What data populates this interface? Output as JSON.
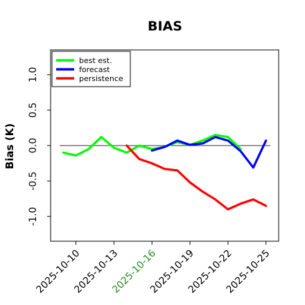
{
  "chart_data": {
    "type": "line",
    "title": "BIAS",
    "xlabel": "",
    "ylabel": "Bias (K)",
    "x_dates": [
      "2025-10-09",
      "2025-10-10",
      "2025-10-11",
      "2025-10-12",
      "2025-10-13",
      "2025-10-14",
      "2025-10-15",
      "2025-10-16",
      "2025-10-17",
      "2025-10-18",
      "2025-10-19",
      "2025-10-20",
      "2025-10-21",
      "2025-10-22",
      "2025-10-23",
      "2025-10-24",
      "2025-10-25"
    ],
    "xlim": [
      "2025-10-08",
      "2025-10-26"
    ],
    "ylim": [
      -1.35,
      1.35
    ],
    "yticks": [
      -1.0,
      -0.5,
      0.0,
      0.5,
      1.0
    ],
    "ytick_labels": [
      "-1.0",
      "-0.5",
      "0.0",
      "0.5",
      "1.0"
    ],
    "xtick_labels": [
      {
        "date": "2025-10-10",
        "label": "2025-10-10",
        "color": "#000000"
      },
      {
        "date": "2025-10-13",
        "label": "2025-10-13",
        "color": "#000000"
      },
      {
        "date": "2025-10-16",
        "label": "2025-10-16",
        "color": "#228b22"
      },
      {
        "date": "2025-10-19",
        "label": "2025-10-19",
        "color": "#000000"
      },
      {
        "date": "2025-10-22",
        "label": "2025-10-22",
        "color": "#000000"
      },
      {
        "date": "2025-10-25",
        "label": "2025-10-25",
        "color": "#000000"
      }
    ],
    "hline": 0.0,
    "legend_position": "top-left",
    "series": [
      {
        "name": "best est.",
        "color": "#00ff00",
        "x": [
          "2025-10-09",
          "2025-10-10",
          "2025-10-11",
          "2025-10-12",
          "2025-10-13",
          "2025-10-14",
          "2025-10-15",
          "2025-10-16",
          "2025-10-17",
          "2025-10-18",
          "2025-10-19",
          "2025-10-20",
          "2025-10-21",
          "2025-10-22",
          "2025-10-23"
        ],
        "values": [
          -0.1,
          -0.14,
          -0.05,
          0.12,
          -0.03,
          -0.1,
          0.0,
          -0.05,
          -0.02,
          0.05,
          0.01,
          0.07,
          0.15,
          0.12,
          -0.05
        ]
      },
      {
        "name": "forecast",
        "color": "#0000ff",
        "x": [
          "2025-10-16",
          "2025-10-17",
          "2025-10-18",
          "2025-10-19",
          "2025-10-20",
          "2025-10-21",
          "2025-10-22",
          "2025-10-23",
          "2025-10-24",
          "2025-10-25"
        ],
        "values": [
          -0.07,
          -0.02,
          0.07,
          0.01,
          0.03,
          0.12,
          0.07,
          -0.08,
          -0.31,
          0.07
        ]
      },
      {
        "name": "persistence",
        "color": "#ff0000",
        "x": [
          "2025-10-14",
          "2025-10-15",
          "2025-10-16",
          "2025-10-17",
          "2025-10-18",
          "2025-10-19",
          "2025-10-20",
          "2025-10-21",
          "2025-10-22",
          "2025-10-23",
          "2025-10-24",
          "2025-10-25"
        ],
        "values": [
          0.0,
          -0.19,
          -0.25,
          -0.33,
          -0.35,
          -0.52,
          -0.65,
          -0.76,
          -0.9,
          -0.82,
          -0.76,
          -0.85
        ]
      }
    ]
  }
}
